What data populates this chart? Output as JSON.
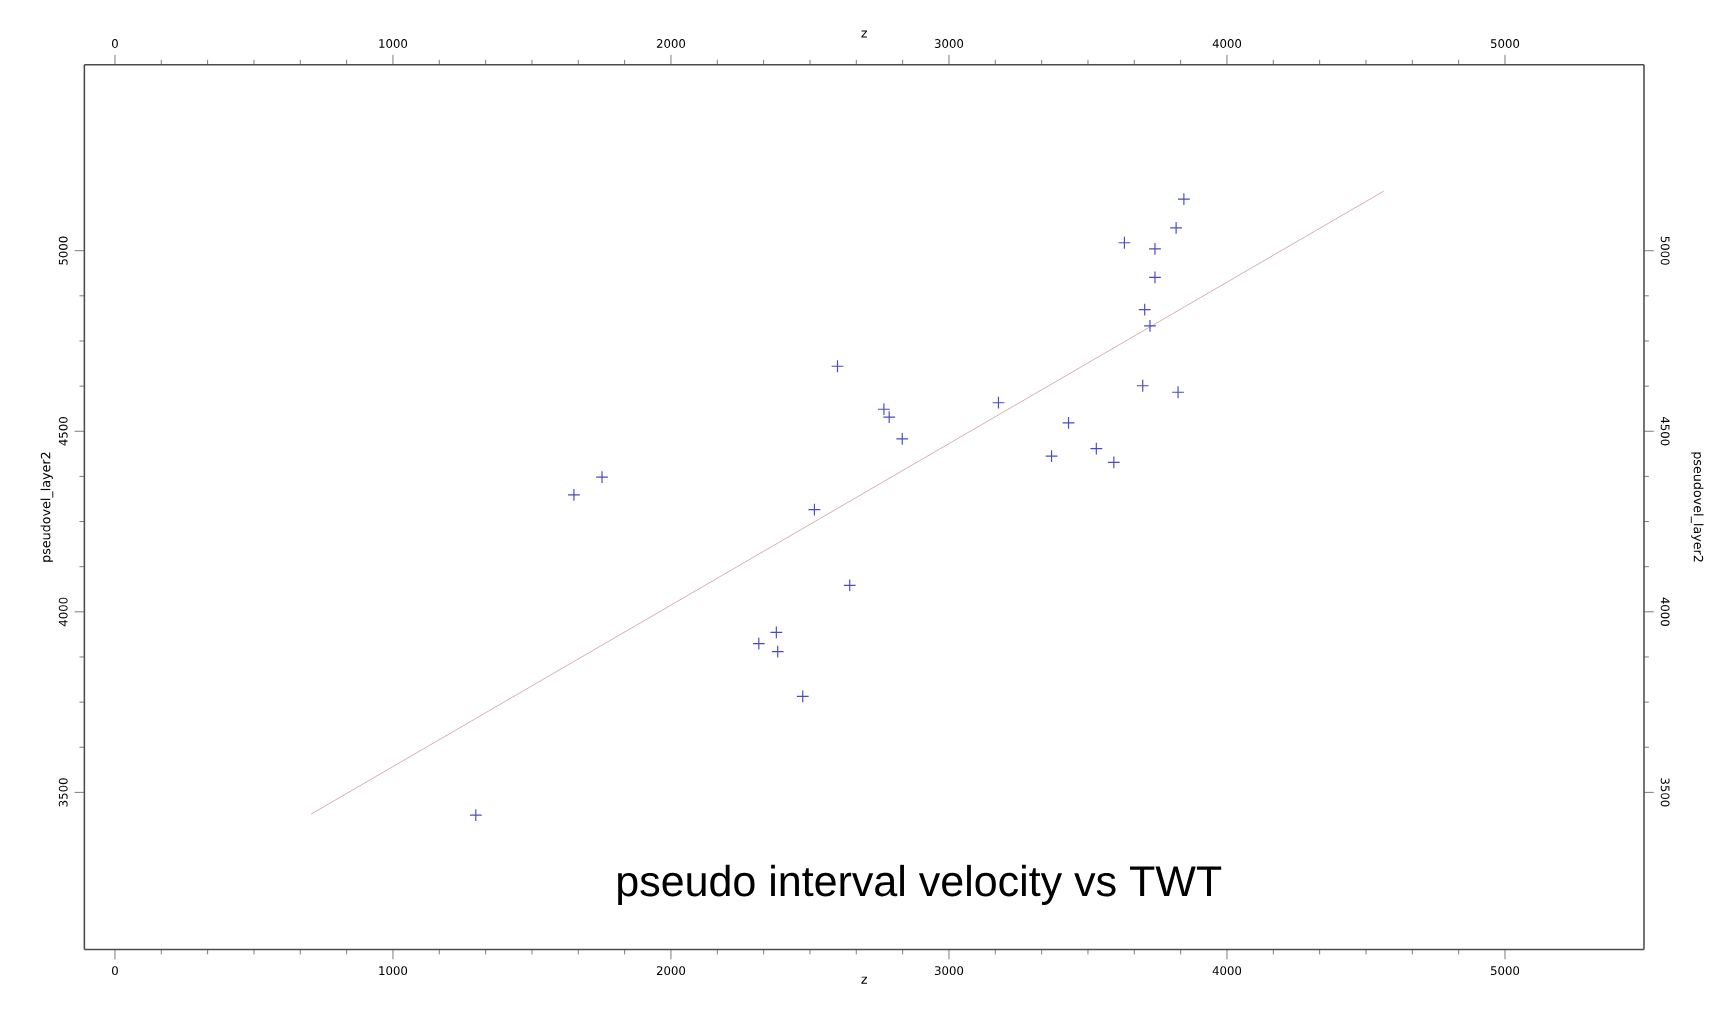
{
  "chart_data": {
    "type": "scatter",
    "xlabel": "z",
    "ylabel": "pseudovel_layer2",
    "x2label": "z",
    "y2label": "pseudovel_layer2",
    "annotations": [
      "pseudo interval velocity vs TWT"
    ],
    "xlim": [
      -110,
      5500
    ],
    "ylim": [
      3065,
      5515
    ],
    "x2lim": [
      -110,
      5500
    ],
    "y2lim": [
      3065,
      5515
    ],
    "xticks": [
      0,
      1000,
      2000,
      3000,
      4000,
      5000
    ],
    "yticks": [
      3500,
      4000,
      4500,
      5000
    ],
    "x2ticks": [
      0,
      1000,
      2000,
      3000,
      4000,
      5000
    ],
    "y2ticks": [
      3500,
      4000,
      4500,
      5000
    ],
    "marker": "cross",
    "series": [
      {
        "color": "#4a4ac8",
        "x": [
          1298,
          1651,
          1752,
          2599,
          2766,
          2785,
          2832,
          2516,
          2643,
          2316,
          2379,
          2384,
          2474,
          3178,
          3430,
          3369,
          3530,
          3593,
          3697,
          3824,
          3723,
          3704,
          3741,
          3741,
          3631,
          3817,
          3845
        ],
        "values": [
          3437,
          4324,
          4373,
          4680,
          4561,
          4539,
          4479,
          4283,
          4073,
          3912,
          3943,
          3890,
          3766,
          4579,
          4523,
          4431,
          4452,
          4414,
          4626,
          4608,
          4792,
          4837,
          4926,
          5005,
          5022,
          5063,
          5143
        ]
      },
      {
        "type": "line",
        "color": "#c89a9a",
        "marker": "none",
        "x": [
          706,
          4564
        ],
        "values": [
          3440,
          5165
        ]
      }
    ]
  }
}
